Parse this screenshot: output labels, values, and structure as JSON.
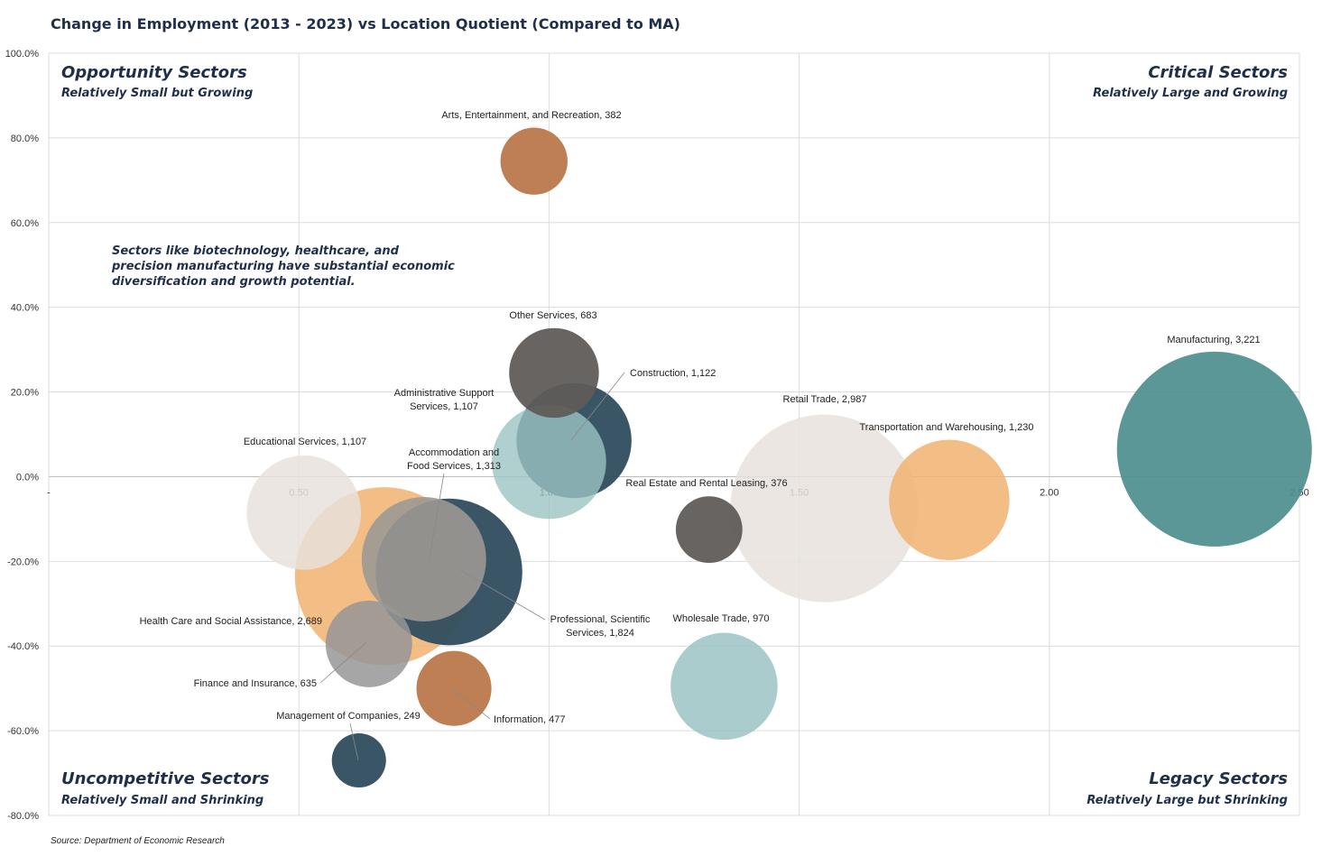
{
  "chart_data": {
    "type": "scatter",
    "subtype": "bubble",
    "title": "Change in Employment (2013 - 2023) vs Location Quotient (Compared to MA)",
    "xlim": [
      0,
      2.5
    ],
    "ylim": [
      -80,
      100
    ],
    "x_ticks": [
      {
        "value": 0.5,
        "label": "0.50"
      },
      {
        "value": 1.0,
        "label": "1.00"
      },
      {
        "value": 1.5,
        "label": "1.50"
      },
      {
        "value": 2.0,
        "label": "2.00"
      },
      {
        "value": 2.5,
        "label": "2.50"
      }
    ],
    "x_origin_label": "-",
    "y_ticks": [
      {
        "value": 100,
        "label": "100.0%"
      },
      {
        "value": 80,
        "label": "80.0%"
      },
      {
        "value": 60,
        "label": "60.0%"
      },
      {
        "value": 40,
        "label": "40.0%"
      },
      {
        "value": 20,
        "label": "20.0%"
      },
      {
        "value": 0,
        "label": "0.0%"
      },
      {
        "value": -20,
        "label": "-20.0%"
      },
      {
        "value": -40,
        "label": "-40.0%"
      },
      {
        "value": -60,
        "label": "-60.0%"
      },
      {
        "value": -80,
        "label": "-80.0%"
      }
    ],
    "quadrants": [
      {
        "pos": "top-left",
        "title": "Opportunity Sectors",
        "subtitle": "Relatively Small but Growing"
      },
      {
        "pos": "top-right",
        "title": "Critical Sectors",
        "subtitle": "Relatively Large and Growing"
      },
      {
        "pos": "bottom-left",
        "title": "Uncompetitive Sectors",
        "subtitle": "Relatively Small and Shrinking"
      },
      {
        "pos": "bottom-right",
        "title": "Legacy Sectors",
        "subtitle": "Relatively Large but Shrinking"
      }
    ],
    "annotation": [
      "Sectors like biotechnology, healthcare, and",
      "precision manufacturing have substantial economic",
      "diversification and growth potential."
    ],
    "source": "Source: Department of Economic Research",
    "colors": {
      "copper": "#b9784a",
      "charcoal": "#5f5c58",
      "navy": "#2f4d5e",
      "teal": "#4a8c8c",
      "lightteal": "#9cc3c3",
      "beige": "#e8e2dc",
      "orange": "#f0b371",
      "gray": "#969696",
      "taupe": "#9c9893"
    },
    "series": [
      {
        "name": "Manufacturing",
        "value_label": "3,221",
        "x": 2.33,
        "y": 6.5,
        "size": 3221,
        "color": "teal",
        "opacity": 0.9,
        "label": [
          "Manufacturing,  3,221"
        ]
      },
      {
        "name": "Retail Trade",
        "value_label": "2,987",
        "x": 1.55,
        "y": -7.5,
        "size": 2987,
        "color": "beige",
        "opacity": 0.85,
        "label": [
          "Retail Trade,  2,987"
        ]
      },
      {
        "name": "Professional, Scientific Services",
        "value_label": "1,824",
        "x": 0.8,
        "y": -22.5,
        "size": 1824,
        "color": "navy",
        "opacity": 0.95,
        "label": [
          "Professional, Scientific",
          "Services,  1,824"
        ]
      },
      {
        "name": "Health Care and Social Assistance",
        "value_label": "2,689",
        "x": 0.67,
        "y": -23.5,
        "size": 2689,
        "color": "orange",
        "opacity": 0.85,
        "label": [
          "Health Care and Social Assistance,  2,689"
        ]
      },
      {
        "name": "Accommodation and Food Services",
        "value_label": "1,313",
        "x": 0.75,
        "y": -19.5,
        "size": 1313,
        "color": "taupe",
        "opacity": 0.9,
        "label": [
          "Accommodation and",
          "Food Services,  1,313"
        ]
      },
      {
        "name": "Transportation and Warehousing",
        "value_label": "1,230",
        "x": 1.8,
        "y": -5.5,
        "size": 1230,
        "color": "orange",
        "opacity": 0.85,
        "label": [
          "Transportation and Warehousing,  1,230"
        ]
      },
      {
        "name": "Construction",
        "value_label": "1,122",
        "x": 1.05,
        "y": 8.5,
        "size": 1122,
        "color": "navy",
        "opacity": 0.95,
        "label": [
          "Construction,  1,122"
        ]
      },
      {
        "name": "Administrative Support Services",
        "value_label": "1,107",
        "x": 1.0,
        "y": 3.5,
        "size": 1107,
        "color": "lightteal",
        "opacity": 0.8,
        "label": [
          "Administrative Support",
          "Services,  1,107"
        ]
      },
      {
        "name": "Educational Services",
        "value_label": "1,107",
        "x": 0.51,
        "y": -8.5,
        "size": 1107,
        "color": "beige",
        "opacity": 0.85,
        "label": [
          "Educational Services,  1,107"
        ]
      },
      {
        "name": "Wholesale Trade",
        "value_label": "970",
        "x": 1.35,
        "y": -49.5,
        "size": 970,
        "color": "lightteal",
        "opacity": 0.85,
        "label": [
          "Wholesale Trade,  970"
        ]
      },
      {
        "name": "Other Services",
        "value_label": "683",
        "x": 1.01,
        "y": 24.5,
        "size": 683,
        "color": "charcoal",
        "opacity": 0.95,
        "label": [
          "Other Services,  683"
        ]
      },
      {
        "name": "Finance and Insurance",
        "value_label": "635",
        "x": 0.64,
        "y": -39.5,
        "size": 635,
        "color": "gray",
        "opacity": 0.85,
        "label": [
          "Finance and Insurance,  635"
        ]
      },
      {
        "name": "Information",
        "value_label": "477",
        "x": 0.81,
        "y": -50.0,
        "size": 477,
        "color": "copper",
        "opacity": 0.95,
        "label": [
          "Information,  477"
        ]
      },
      {
        "name": "Arts, Entertainment, and Recreation",
        "value_label": "382",
        "x": 0.97,
        "y": 74.5,
        "size": 382,
        "color": "copper",
        "opacity": 0.95,
        "label": [
          "Arts, Entertainment, and Recreation,  382"
        ]
      },
      {
        "name": "Real Estate and Rental Leasing",
        "value_label": "376",
        "x": 1.32,
        "y": -12.5,
        "size": 376,
        "color": "charcoal",
        "opacity": 0.95,
        "label": [
          "Real Estate and Rental Leasing,  376"
        ]
      },
      {
        "name": "Management of Companies",
        "value_label": "249",
        "x": 0.62,
        "y": -67.0,
        "size": 249,
        "color": "navy",
        "opacity": 0.95,
        "label": [
          "Management of Companies,  249"
        ]
      }
    ]
  }
}
